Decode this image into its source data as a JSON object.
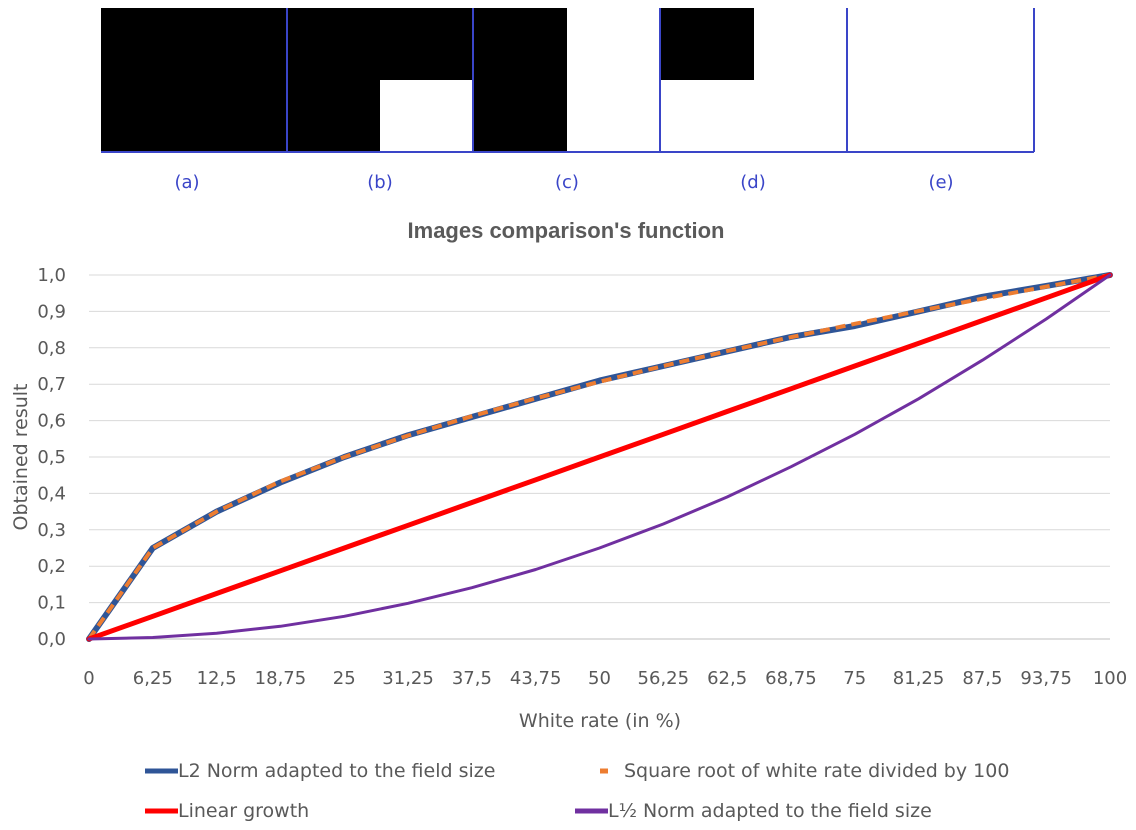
{
  "panels": {
    "labels": [
      "(a)",
      "(b)",
      "(c)",
      "(d)",
      "(e)"
    ],
    "fill_color": "#000000",
    "border_color": "#3a45c8"
  },
  "chart_data": {
    "type": "line",
    "title": "Images comparison's function",
    "xlabel": "White rate (in %)",
    "ylabel": "Obtained result",
    "categories": [
      "0",
      "6,25",
      "12,5",
      "18,75",
      "25",
      "31,25",
      "37,5",
      "43,75",
      "50",
      "56,25",
      "62,5",
      "68,75",
      "75",
      "81,25",
      "87,5",
      "93,75",
      "100"
    ],
    "x": [
      0,
      6.25,
      12.5,
      18.75,
      25,
      31.25,
      37.5,
      43.75,
      50,
      56.25,
      62.5,
      68.75,
      75,
      81.25,
      87.5,
      93.75,
      100
    ],
    "yticks": [
      "0,0",
      "0,1",
      "0,2",
      "0,3",
      "0,4",
      "0,5",
      "0,6",
      "0,7",
      "0,8",
      "0,9",
      "1,0"
    ],
    "ylim": [
      0,
      1
    ],
    "grid": true,
    "legend_position": "bottom",
    "series": [
      {
        "name": "L2 Norm adapted to the field size",
        "color": "#2f5597",
        "style": "solid",
        "values": [
          0,
          0.25,
          0.35,
          0.43,
          0.5,
          0.56,
          0.61,
          0.66,
          0.71,
          0.75,
          0.79,
          0.83,
          0.86,
          0.9,
          0.94,
          0.97,
          1.0
        ]
      },
      {
        "name": "Square root of white rate divided by 100",
        "color": "#ed7d31",
        "style": "dashed",
        "values": [
          0,
          0.25,
          0.35,
          0.433,
          0.5,
          0.559,
          0.612,
          0.661,
          0.707,
          0.75,
          0.791,
          0.829,
          0.866,
          0.901,
          0.935,
          0.968,
          1.0
        ]
      },
      {
        "name": "Linear growth",
        "color": "#ff0000",
        "style": "solid",
        "values": [
          0,
          0.0625,
          0.125,
          0.1875,
          0.25,
          0.3125,
          0.375,
          0.4375,
          0.5,
          0.5625,
          0.625,
          0.6875,
          0.75,
          0.8125,
          0.875,
          0.9375,
          1.0
        ]
      },
      {
        "name": "L½ Norm adapted to the field size",
        "color": "#7030a0",
        "style": "solid",
        "values": [
          0,
          0.004,
          0.016,
          0.035,
          0.0625,
          0.098,
          0.141,
          0.191,
          0.25,
          0.316,
          0.39,
          0.473,
          0.5625,
          0.66,
          0.766,
          0.879,
          1.0
        ]
      }
    ]
  }
}
